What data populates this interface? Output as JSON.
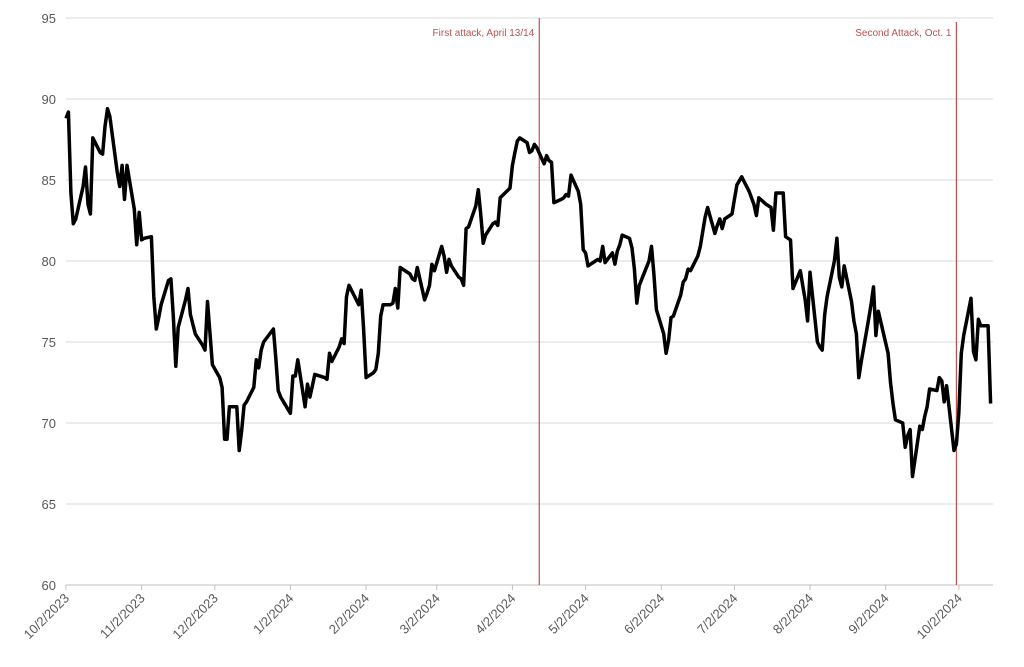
{
  "chart_data": {
    "type": "line",
    "color": "#000000",
    "grid": true,
    "x": [
      "10/2/2023",
      "10/3/2023",
      "10/4/2023",
      "10/5/2023",
      "10/6/2023",
      "10/9/2023",
      "10/10/2023",
      "10/11/2023",
      "10/12/2023",
      "10/13/2023",
      "10/16/2023",
      "10/17/2023",
      "10/18/2023",
      "10/19/2023",
      "10/20/2023",
      "10/23/2023",
      "10/24/2023",
      "10/25/2023",
      "10/26/2023",
      "10/27/2023",
      "10/30/2023",
      "10/31/2023",
      "11/1/2023",
      "11/2/2023",
      "11/3/2023",
      "11/6/2023",
      "11/7/2023",
      "11/8/2023",
      "11/9/2023",
      "11/10/2023",
      "11/13/2023",
      "11/14/2023",
      "11/15/2023",
      "11/16/2023",
      "11/17/2023",
      "11/20/2023",
      "11/21/2023",
      "11/22/2023",
      "11/24/2023",
      "11/27/2023",
      "11/28/2023",
      "11/29/2023",
      "11/30/2023",
      "12/1/2023",
      "12/4/2023",
      "12/5/2023",
      "12/6/2023",
      "12/7/2023",
      "12/8/2023",
      "12/11/2023",
      "12/12/2023",
      "12/13/2023",
      "12/14/2023",
      "12/15/2023",
      "12/18/2023",
      "12/19/2023",
      "12/20/2023",
      "12/21/2023",
      "12/22/2023",
      "12/26/2023",
      "12/27/2023",
      "12/28/2023",
      "12/29/2023",
      "1/2/2024",
      "1/3/2024",
      "1/4/2024",
      "1/5/2024",
      "1/8/2024",
      "1/9/2024",
      "1/10/2024",
      "1/11/2024",
      "1/12/2024",
      "1/16/2024",
      "1/17/2024",
      "1/18/2024",
      "1/19/2024",
      "1/22/2024",
      "1/23/2024",
      "1/24/2024",
      "1/25/2024",
      "1/26/2024",
      "1/29/2024",
      "1/30/2024",
      "1/31/2024",
      "2/1/2024",
      "2/2/2024",
      "2/5/2024",
      "2/6/2024",
      "2/7/2024",
      "2/8/2024",
      "2/9/2024",
      "2/12/2024",
      "2/13/2024",
      "2/14/2024",
      "2/15/2024",
      "2/16/2024",
      "2/20/2024",
      "2/21/2024",
      "2/22/2024",
      "2/23/2024",
      "2/26/2024",
      "2/27/2024",
      "2/28/2024",
      "2/29/2024",
      "3/1/2024",
      "3/4/2024",
      "3/5/2024",
      "3/6/2024",
      "3/7/2024",
      "3/8/2024",
      "3/11/2024",
      "3/12/2024",
      "3/13/2024",
      "3/14/2024",
      "3/15/2024",
      "3/18/2024",
      "3/19/2024",
      "3/20/2024",
      "3/21/2024",
      "3/22/2024",
      "3/25/2024",
      "3/26/2024",
      "3/27/2024",
      "3/28/2024",
      "4/1/2024",
      "4/2/2024",
      "4/3/2024",
      "4/4/2024",
      "4/5/2024",
      "4/8/2024",
      "4/9/2024",
      "4/10/2024",
      "4/11/2024",
      "4/12/2024",
      "4/15/2024",
      "4/16/2024",
      "4/17/2024",
      "4/18/2024",
      "4/19/2024",
      "4/22/2024",
      "4/23/2024",
      "4/24/2024",
      "4/25/2024",
      "4/26/2024",
      "4/29/2024",
      "4/30/2024",
      "5/1/2024",
      "5/2/2024",
      "5/3/2024",
      "5/6/2024",
      "5/7/2024",
      "5/8/2024",
      "5/9/2024",
      "5/10/2024",
      "5/13/2024",
      "5/14/2024",
      "5/15/2024",
      "5/16/2024",
      "5/17/2024",
      "5/20/2024",
      "5/21/2024",
      "5/22/2024",
      "5/23/2024",
      "5/24/2024",
      "5/28/2024",
      "5/29/2024",
      "5/30/2024",
      "5/31/2024",
      "6/3/2024",
      "6/4/2024",
      "6/5/2024",
      "6/6/2024",
      "6/7/2024",
      "6/10/2024",
      "6/11/2024",
      "6/12/2024",
      "6/13/2024",
      "6/14/2024",
      "6/17/2024",
      "6/18/2024",
      "6/20/2024",
      "6/21/2024",
      "6/24/2024",
      "6/25/2024",
      "6/26/2024",
      "6/27/2024",
      "6/28/2024",
      "7/1/2024",
      "7/2/2024",
      "7/3/2024",
      "7/5/2024",
      "7/8/2024",
      "7/9/2024",
      "7/10/2024",
      "7/11/2024",
      "7/12/2024",
      "7/15/2024",
      "7/16/2024",
      "7/17/2024",
      "7/18/2024",
      "7/19/2024",
      "7/22/2024",
      "7/23/2024",
      "7/24/2024",
      "7/25/2024",
      "7/26/2024",
      "7/29/2024",
      "7/30/2024",
      "7/31/2024",
      "8/1/2024",
      "8/2/2024",
      "8/5/2024",
      "8/6/2024",
      "8/7/2024",
      "8/8/2024",
      "8/9/2024",
      "8/12/2024",
      "8/13/2024",
      "8/14/2024",
      "8/15/2024",
      "8/16/2024",
      "8/19/2024",
      "8/20/2024",
      "8/21/2024",
      "8/22/2024",
      "8/23/2024",
      "8/26/2024",
      "8/27/2024",
      "8/28/2024",
      "8/29/2024",
      "8/30/2024",
      "9/3/2024",
      "9/4/2024",
      "9/5/2024",
      "9/6/2024",
      "9/9/2024",
      "9/10/2024",
      "9/11/2024",
      "9/12/2024",
      "9/13/2024",
      "9/16/2024",
      "9/17/2024",
      "9/18/2024",
      "9/19/2024",
      "9/20/2024",
      "9/23/2024",
      "9/24/2024",
      "9/25/2024",
      "9/26/2024",
      "9/27/2024",
      "9/30/2024",
      "10/1/2024",
      "10/2/2024",
      "10/3/2024",
      "10/4/2024",
      "10/7/2024",
      "10/8/2024",
      "10/9/2024",
      "10/10/2024",
      "10/11/2024",
      "10/14/2024",
      "10/15/2024"
    ],
    "values": [
      88.8,
      89.2,
      84.2,
      82.3,
      82.6,
      84.6,
      85.8,
      83.5,
      82.9,
      87.6,
      86.7,
      86.6,
      88.3,
      89.4,
      88.9,
      85.5,
      84.6,
      85.9,
      83.8,
      85.9,
      83.2,
      81.0,
      83.0,
      81.3,
      81.4,
      81.5,
      77.8,
      75.8,
      76.5,
      77.3,
      78.8,
      78.9,
      76.6,
      73.5,
      75.9,
      77.6,
      78.3,
      76.7,
      75.5,
      74.8,
      74.5,
      77.5,
      75.6,
      73.6,
      72.8,
      72.2,
      69.0,
      69.0,
      71.0,
      71.0,
      68.3,
      69.5,
      71.1,
      71.3,
      72.2,
      73.9,
      73.4,
      74.5,
      75.0,
      75.8,
      74.0,
      72.0,
      71.6,
      70.6,
      72.9,
      72.9,
      73.9,
      71.0,
      72.4,
      71.6,
      72.3,
      73.0,
      72.8,
      72.7,
      74.3,
      73.8,
      74.7,
      75.2,
      74.9,
      77.8,
      78.5,
      77.6,
      77.3,
      78.2,
      75.8,
      72.8,
      73.1,
      73.3,
      74.3,
      76.6,
      77.3,
      77.3,
      77.4,
      78.3,
      77.1,
      79.6,
      79.2,
      78.9,
      78.8,
      79.6,
      77.6,
      78.0,
      78.5,
      79.8,
      79.4,
      80.9,
      80.3,
      79.3,
      80.1,
      79.7,
      79.0,
      78.9,
      78.5,
      82.0,
      82.1,
      83.4,
      84.4,
      82.9,
      81.1,
      81.6,
      82.3,
      82.4,
      82.2,
      83.9,
      84.5,
      85.9,
      86.7,
      87.4,
      87.6,
      87.3,
      86.7,
      86.8,
      87.2,
      87.0,
      86.0,
      86.5,
      86.2,
      86.1,
      83.6,
      83.8,
      83.9,
      84.1,
      84.0,
      85.3,
      84.3,
      83.5,
      80.7,
      80.5,
      79.7,
      80.0,
      80.1,
      80.0,
      80.9,
      79.9,
      80.5,
      79.8,
      80.6,
      81.0,
      81.6,
      81.4,
      80.8,
      79.5,
      77.4,
      78.5,
      80.0,
      80.9,
      79.2,
      77.0,
      75.5,
      74.3,
      75.1,
      76.5,
      76.6,
      77.9,
      78.7,
      78.9,
      79.5,
      79.4,
      80.3,
      80.9,
      82.7,
      83.3,
      81.7,
      82.2,
      82.6,
      82.0,
      82.6,
      82.9,
      83.8,
      84.7,
      85.2,
      84.3,
      83.9,
      83.5,
      82.8,
      83.9,
      83.5,
      83.4,
      83.3,
      81.9,
      84.2,
      84.2,
      81.5,
      81.4,
      81.3,
      78.3,
      79.4,
      78.5,
      77.6,
      76.3,
      79.3,
      75.0,
      74.7,
      74.5,
      76.7,
      77.8,
      80.0,
      81.4,
      79.0,
      78.4,
      79.7,
      77.5,
      76.3,
      75.5,
      72.8,
      73.8,
      76.4,
      77.3,
      78.4,
      75.4,
      76.9,
      74.3,
      72.5,
      71.2,
      70.2,
      70.0,
      68.5,
      69.2,
      69.6,
      66.7,
      69.8,
      69.6,
      70.4,
      71.0,
      72.1,
      72.0,
      72.8,
      72.6,
      71.3,
      72.3,
      68.3,
      68.7,
      70.6,
      74.3,
      75.4,
      77.7,
      74.4,
      73.9,
      76.4,
      76.0,
      76.0,
      71.2
    ],
    "xlim": [
      "10/2/2023",
      "10/16/2024"
    ],
    "xticks": [
      "10/2/2023",
      "11/2/2023",
      "12/2/2023",
      "1/2/2024",
      "2/2/2024",
      "3/2/2024",
      "4/2/2024",
      "5/2/2024",
      "6/2/2024",
      "7/2/2024",
      "8/2/2024",
      "9/2/2024",
      "10/2/2024"
    ],
    "ylim": [
      60,
      95
    ],
    "yticks": [
      60,
      65,
      70,
      75,
      80,
      85,
      90,
      95
    ],
    "annotations": [
      {
        "x": "4/13/2024",
        "text": "First attack, April 13/14",
        "color": "#c0504d"
      },
      {
        "x": "10/1/2024",
        "text": "Second Attack, Oct. 1",
        "color": "#c0504d"
      }
    ]
  }
}
